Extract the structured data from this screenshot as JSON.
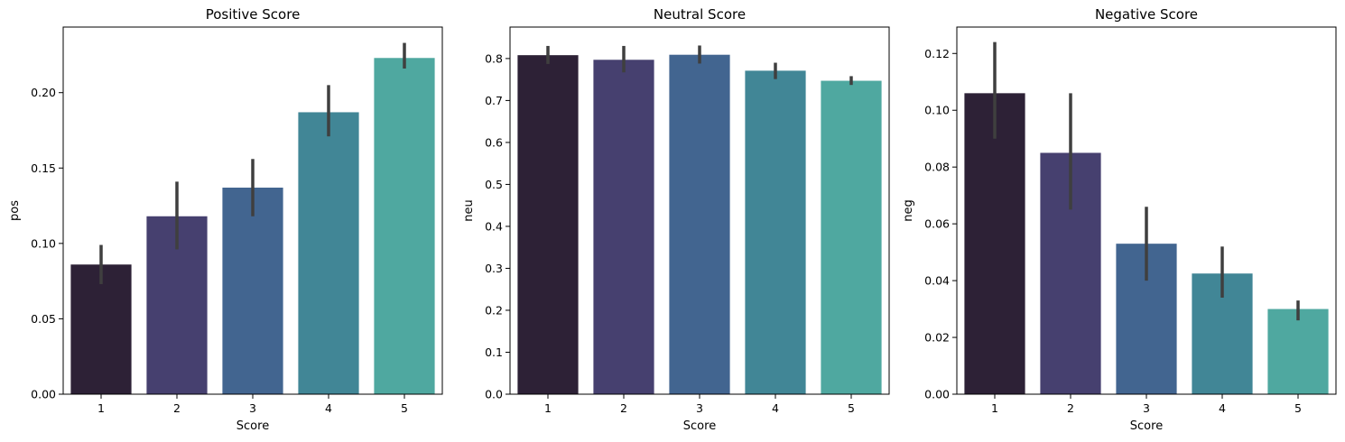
{
  "chart_data": [
    {
      "type": "bar",
      "title": "Positive Score",
      "xlabel": "Score",
      "ylabel": "pos",
      "categories": [
        "1",
        "2",
        "3",
        "4",
        "5"
      ],
      "values": [
        0.086,
        0.118,
        0.137,
        0.187,
        0.223
      ],
      "ci_low": [
        0.073,
        0.096,
        0.118,
        0.171,
        0.216
      ],
      "ci_high": [
        0.099,
        0.141,
        0.156,
        0.205,
        0.233
      ],
      "ylim": [
        0,
        0.2435
      ],
      "yticks": [
        0.0,
        0.05,
        0.1,
        0.15,
        0.2
      ],
      "ytick_labels": [
        "0.00",
        "0.05",
        "0.10",
        "0.15",
        "0.20"
      ],
      "colors": [
        "#2d2136",
        "#46406f",
        "#426590",
        "#418696",
        "#4fa8a0"
      ],
      "grid": false
    },
    {
      "type": "bar",
      "title": "Neutral Score",
      "xlabel": "Score",
      "ylabel": "neu",
      "categories": [
        "1",
        "2",
        "3",
        "4",
        "5"
      ],
      "values": [
        0.808,
        0.797,
        0.809,
        0.771,
        0.747
      ],
      "ci_low": [
        0.787,
        0.767,
        0.788,
        0.751,
        0.737
      ],
      "ci_high": [
        0.83,
        0.83,
        0.831,
        0.79,
        0.758
      ],
      "ylim": [
        0,
        0.875
      ],
      "yticks": [
        0.0,
        0.1,
        0.2,
        0.3,
        0.4,
        0.5,
        0.6,
        0.7,
        0.8
      ],
      "ytick_labels": [
        "0.0",
        "0.1",
        "0.2",
        "0.3",
        "0.4",
        "0.5",
        "0.6",
        "0.7",
        "0.8"
      ],
      "colors": [
        "#2d2136",
        "#46406f",
        "#426590",
        "#418696",
        "#4fa8a0"
      ],
      "grid": false
    },
    {
      "type": "bar",
      "title": "Negative Score",
      "xlabel": "Score",
      "ylabel": "neg",
      "categories": [
        "1",
        "2",
        "3",
        "4",
        "5"
      ],
      "values": [
        0.106,
        0.085,
        0.053,
        0.0425,
        0.03
      ],
      "ci_low": [
        0.09,
        0.065,
        0.04,
        0.034,
        0.026
      ],
      "ci_high": [
        0.124,
        0.106,
        0.066,
        0.052,
        0.033
      ],
      "ylim": [
        0,
        0.1293
      ],
      "yticks": [
        0.0,
        0.02,
        0.04,
        0.06,
        0.08,
        0.1,
        0.12
      ],
      "ytick_labels": [
        "0.00",
        "0.02",
        "0.04",
        "0.06",
        "0.08",
        "0.10",
        "0.12"
      ],
      "colors": [
        "#2d2136",
        "#46406f",
        "#426590",
        "#418696",
        "#4fa8a0"
      ],
      "grid": false
    }
  ]
}
